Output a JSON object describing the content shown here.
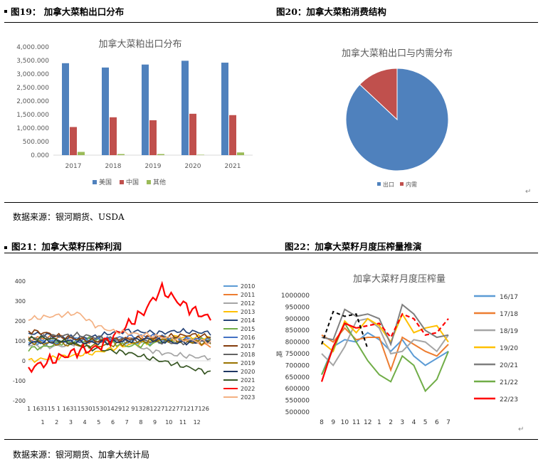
{
  "headers": {
    "fig19": "图19：  加拿大菜粕出口分布",
    "fig20": "图20：加拿大菜粕消费结构",
    "fig21": "图21：加拿大菜籽压榨利润",
    "fig22": "图22：加拿大菜籽月度压榨量推演"
  },
  "sources": {
    "top": "数据来源：银河期货、USDA",
    "bottom": "数据来源：银河期货、加拿大统计局"
  },
  "return_mark": "↵",
  "chart_data": [
    {
      "id": "fig19",
      "type": "bar",
      "title": "加拿大菜粕出口分布",
      "categories": [
        "2017",
        "2018",
        "2019",
        "2020",
        "2021"
      ],
      "ylim": [
        0,
        4000
      ],
      "yticks": [
        "0.000",
        "500.000",
        "1,000.000",
        "1,500.000",
        "2,000.000",
        "2,500.000",
        "3,000.000",
        "3,500.000",
        "4,000.000"
      ],
      "series": [
        {
          "name": "美国",
          "color": "#4F81BD",
          "values": [
            3400,
            3240,
            3350,
            3490,
            3420
          ]
        },
        {
          "name": "中国",
          "color": "#C0504D",
          "values": [
            1040,
            1400,
            1290,
            1530,
            1480
          ]
        },
        {
          "name": "其他",
          "color": "#9BBB59",
          "values": [
            120,
            40,
            40,
            15,
            100
          ]
        }
      ],
      "legend": "bottom"
    },
    {
      "id": "fig20",
      "type": "pie",
      "title": "加拿大菜粕出口与内需分布",
      "slices": [
        {
          "name": "出口",
          "color": "#4F81BD",
          "value": 87
        },
        {
          "name": "内需",
          "color": "#C0504D",
          "value": 13
        }
      ],
      "legend": "bottom"
    },
    {
      "id": "fig21",
      "type": "line",
      "title": "",
      "ylim": [
        -200,
        400
      ],
      "yticks": [
        "400",
        "300",
        "200",
        "100",
        "0",
        "-100",
        "-200"
      ],
      "x_tick_string": "1 163115 1 163115301530142912 913281227122771217126",
      "x_month_labels": [
        "1",
        "2",
        "3",
        "4",
        "5",
        "6",
        "7",
        "8",
        "9",
        "10",
        "11",
        "12"
      ],
      "legend": "right",
      "series": [
        {
          "name": "2010",
          "color": "#5B9BD5",
          "values": [
            90,
            95,
            100,
            110,
            105,
            100,
            95,
            90,
            100,
            105,
            110,
            108
          ]
        },
        {
          "name": "2011",
          "color": "#ED7D31",
          "values": [
            110,
            115,
            120,
            105,
            95,
            100,
            110,
            120,
            115,
            105,
            100,
            70
          ]
        },
        {
          "name": "2012",
          "color": "#A5A5A5",
          "values": [
            80,
            70,
            75,
            90,
            100,
            110,
            95,
            60,
            40,
            30,
            20,
            15
          ]
        },
        {
          "name": "2013",
          "color": "#FFC000",
          "values": [
            0,
            10,
            20,
            30,
            40,
            60,
            80,
            90,
            110,
            120,
            120,
            115
          ]
        },
        {
          "name": "2014",
          "color": "#264478",
          "values": [
            140,
            130,
            120,
            115,
            120,
            140,
            150,
            145,
            140,
            150,
            145,
            140
          ]
        },
        {
          "name": "2015",
          "color": "#70AD47",
          "values": [
            60,
            70,
            90,
            100,
            110,
            90,
            75,
            80,
            95,
            110,
            100,
            105
          ]
        },
        {
          "name": "2016",
          "color": "#4472C4",
          "values": [
            100,
            95,
            90,
            100,
            105,
            110,
            120,
            125,
            120,
            110,
            105,
            110
          ]
        },
        {
          "name": "2017",
          "color": "#843C0C",
          "values": [
            150,
            140,
            120,
            110,
            100,
            105,
            110,
            115,
            120,
            125,
            130,
            120
          ]
        },
        {
          "name": "2018",
          "color": "#636363",
          "values": [
            110,
            120,
            125,
            130,
            120,
            110,
            105,
            100,
            95,
            90,
            95,
            100
          ]
        },
        {
          "name": "2019",
          "color": "#997300",
          "values": [
            95,
            90,
            85,
            80,
            75,
            80,
            90,
            100,
            105,
            100,
            95,
            90
          ]
        },
        {
          "name": "2020",
          "color": "#1F3864",
          "values": [
            90,
            95,
            100,
            95,
            90,
            95,
            100,
            110,
            100,
            90,
            95,
            100
          ]
        },
        {
          "name": "2021",
          "color": "#375623",
          "values": [
            110,
            115,
            100,
            80,
            60,
            50,
            40,
            20,
            0,
            -20,
            -40,
            -60
          ]
        },
        {
          "name": "2022",
          "color": "#FF0000",
          "values": [
            -40,
            -10,
            20,
            50,
            60,
            110,
            180,
            250,
            360,
            300,
            250,
            210
          ]
        },
        {
          "name": "2023",
          "color": "#F4B183",
          "values": [
            210,
            220,
            230,
            240,
            180,
            150,
            140,
            130,
            120,
            110,
            100,
            95
          ]
        }
      ]
    },
    {
      "id": "fig22",
      "type": "line",
      "title": "加拿大菜籽月度压榨量",
      "ylabel": "吨",
      "ylim": [
        500000,
        1000000
      ],
      "yticks": [
        "1000000",
        "950000",
        "900000",
        "850000",
        "800000",
        "750000",
        "700000",
        "650000",
        "600000",
        "550000",
        "500000"
      ],
      "categories": [
        "8",
        "9",
        "10",
        "11",
        "12",
        "1",
        "2",
        "3",
        "4",
        "5",
        "6",
        "7"
      ],
      "legend": "right",
      "series": [
        {
          "name": "16/17",
          "color": "#5B9BD5",
          "values": [
            660,
            780,
            810,
            800,
            840,
            810,
            760,
            810,
            740,
            700,
            730,
            760
          ]
        },
        {
          "name": "17/18",
          "color": "#ED7D31",
          "values": [
            830,
            800,
            860,
            810,
            820,
            820,
            680,
            820,
            790,
            760,
            740,
            790
          ]
        },
        {
          "name": "18/19",
          "color": "#A5A5A5",
          "values": [
            750,
            700,
            780,
            890,
            900,
            860,
            750,
            760,
            810,
            800,
            760,
            830
          ]
        },
        {
          "name": "19/20",
          "color": "#FFC000",
          "values": [
            800,
            760,
            890,
            840,
            900,
            870,
            800,
            920,
            840,
            860,
            870,
            800
          ]
        },
        {
          "name": "20/21",
          "color": "#7F7F7F",
          "values": [
            820,
            810,
            940,
            910,
            920,
            900,
            790,
            960,
            920,
            850,
            820,
            830
          ]
        },
        {
          "name": "21/22",
          "color": "#70AD47",
          "values": [
            660,
            770,
            880,
            800,
            720,
            660,
            630,
            740,
            700,
            590,
            640,
            760
          ]
        },
        {
          "name": "22/23",
          "color": "#FF0000",
          "values": [
            630,
            780,
            880,
            860,
            870,
            880,
            820,
            920,
            900,
            830,
            840,
            900
          ]
        }
      ]
    }
  ]
}
